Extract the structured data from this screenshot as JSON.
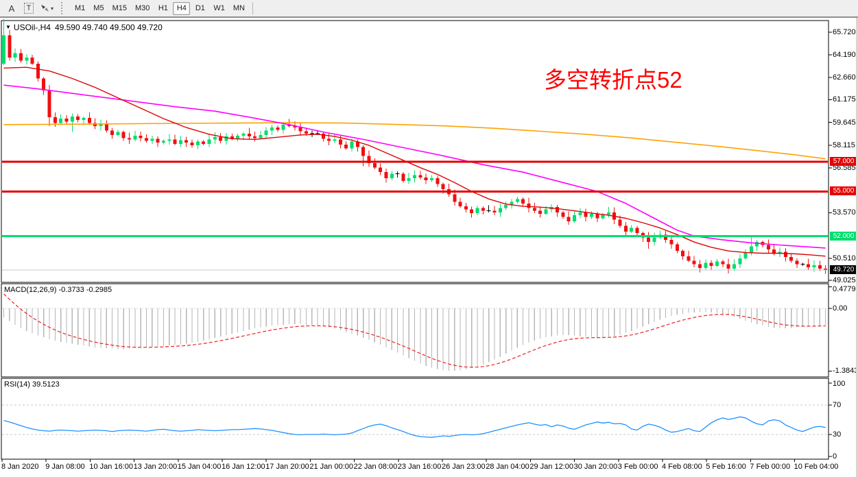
{
  "toolbar": {
    "text_tool_label": "A",
    "select_tool_label": "T",
    "caret_icon": "▾",
    "timeframes": [
      "M1",
      "M5",
      "M15",
      "M30",
      "H1",
      "H4",
      "D1",
      "W1",
      "MN"
    ],
    "active_timeframe": "H4"
  },
  "chart": {
    "dropdown_icon": "▼",
    "symbol": "USOil-,H4",
    "ohlc": "49.590 49.740 49.500 49.720",
    "annotation": {
      "text": "多空转折点52",
      "color": "#FF0000"
    },
    "colors": {
      "up": "#00DE6E",
      "down": "#F01010",
      "doji": "#000000",
      "ma_fast": "#DD0404",
      "ma_mid": "#FF00FF",
      "ma_slow": "#FFA200",
      "level_red": "#E60000",
      "level_green": "#00DE6E",
      "current_line": "#C8C8C8",
      "current_badge": "#000000",
      "histogram": "#B6B6B6",
      "signal": "#F02020",
      "rsi_line": "#1E90FF",
      "dashed_level": "#C8C8C8"
    },
    "y_axis": {
      "ticks": [
        {
          "label": "65.720",
          "value": 65.72
        },
        {
          "label": "64.190",
          "value": 64.19
        },
        {
          "label": "62.660",
          "value": 62.66
        },
        {
          "label": "61.175",
          "value": 61.175
        },
        {
          "label": "59.645",
          "value": 59.645
        },
        {
          "label": "58.115",
          "value": 58.115
        },
        {
          "label": "56.585",
          "value": 56.585
        },
        {
          "label": "53.570",
          "value": 53.57
        },
        {
          "label": "50.510",
          "value": 50.51
        },
        {
          "label": "49.025",
          "value": 49.025
        }
      ]
    },
    "levels": [
      {
        "label": "57.000",
        "value": 57.0,
        "style": "red"
      },
      {
        "label": "55.000",
        "value": 55.0,
        "style": "red"
      },
      {
        "label": "52.000",
        "value": 52.0,
        "style": "green"
      },
      {
        "label": "49.720",
        "value": 49.72,
        "style": "current"
      }
    ],
    "candles": {
      "first_open": 63.6,
      "closes": [
        65.5,
        64.0,
        64.3,
        63.8,
        64.0,
        63.6,
        62.6,
        61.8,
        60.0,
        59.6,
        59.9,
        59.7,
        60.05,
        59.8,
        59.95,
        59.6,
        59.4,
        59.55,
        59.1,
        58.8,
        59.0,
        58.6,
        58.5,
        58.75,
        58.6,
        58.4,
        58.55,
        58.3,
        58.4,
        58.5,
        58.2,
        58.45,
        58.3,
        58.1,
        58.35,
        58.2,
        58.5,
        58.65,
        58.4,
        58.7,
        58.55,
        58.75,
        58.9,
        58.7,
        58.6,
        58.8,
        59.1,
        59.3,
        59.15,
        59.5,
        59.4,
        59.3,
        59.05,
        58.9,
        58.9,
        58.9,
        58.55,
        58.4,
        58.5,
        58.15,
        57.9,
        58.35,
        58.0,
        57.4,
        56.9,
        56.6,
        56.3,
        55.9,
        56.2,
        56.2,
        55.7,
        55.9,
        56.1,
        55.95,
        55.75,
        55.9,
        55.5,
        55.15,
        54.8,
        54.3,
        54.0,
        53.8,
        53.55,
        53.9,
        53.7,
        53.7,
        53.6,
        53.9,
        54.1,
        54.3,
        54.5,
        54.2,
        53.9,
        53.7,
        53.5,
        53.8,
        53.95,
        53.6,
        53.3,
        53.0,
        53.4,
        53.6,
        53.3,
        53.5,
        53.2,
        53.45,
        53.6,
        53.1,
        52.7,
        52.3,
        52.55,
        52.2,
        51.9,
        51.6,
        51.9,
        52.1,
        51.75,
        51.45,
        51.0,
        50.65,
        50.35,
        50.1,
        49.85,
        50.2,
        50.0,
        50.3,
        50.1,
        49.8,
        50.1,
        50.5,
        50.9,
        51.3,
        51.6,
        51.4,
        51.1,
        50.8,
        50.95,
        50.6,
        50.35,
        50.1,
        50.1,
        49.9,
        50.05,
        49.8,
        49.72
      ],
      "high_overrides": {
        "0": 66.6,
        "131": 52.05
      },
      "low_overrides": {
        "8": 59.4,
        "12": 59.0,
        "63": 56.7,
        "113": 51.15
      }
    },
    "moving_averages": {
      "fast": [
        [
          0,
          63.3
        ],
        [
          4,
          63.35
        ],
        [
          8,
          63.1
        ],
        [
          12,
          62.6
        ],
        [
          16,
          62.0
        ],
        [
          20,
          61.3
        ],
        [
          24,
          60.6
        ],
        [
          28,
          59.9
        ],
        [
          32,
          59.3
        ],
        [
          36,
          58.85
        ],
        [
          40,
          58.55
        ],
        [
          44,
          58.5
        ],
        [
          48,
          58.65
        ],
        [
          52,
          58.8
        ],
        [
          55,
          58.85
        ],
        [
          58,
          58.7
        ],
        [
          61,
          58.45
        ],
        [
          64,
          58.1
        ],
        [
          67,
          57.6
        ],
        [
          70,
          57.1
        ],
        [
          73,
          56.6
        ],
        [
          76,
          56.15
        ],
        [
          79,
          55.6
        ],
        [
          82,
          55.0
        ],
        [
          85,
          54.5
        ],
        [
          88,
          54.15
        ],
        [
          91,
          54.0
        ],
        [
          94,
          53.95
        ],
        [
          97,
          53.85
        ],
        [
          100,
          53.7
        ],
        [
          103,
          53.55
        ],
        [
          106,
          53.4
        ],
        [
          109,
          53.2
        ],
        [
          112,
          52.9
        ],
        [
          115,
          52.55
        ],
        [
          118,
          52.1
        ],
        [
          121,
          51.6
        ],
        [
          124,
          51.25
        ],
        [
          127,
          51.0
        ],
        [
          130,
          50.9
        ],
        [
          133,
          50.85
        ],
        [
          136,
          50.85
        ],
        [
          139,
          50.8
        ],
        [
          142,
          50.72
        ],
        [
          144,
          50.65
        ]
      ],
      "mid": [
        [
          0,
          62.15
        ],
        [
          6,
          61.9
        ],
        [
          12,
          61.6
        ],
        [
          18,
          61.3
        ],
        [
          24,
          61.0
        ],
        [
          30,
          60.7
        ],
        [
          37,
          60.4
        ],
        [
          43,
          60.0
        ],
        [
          50,
          59.5
        ],
        [
          56,
          59.0
        ],
        [
          63,
          58.5
        ],
        [
          70,
          57.95
        ],
        [
          77,
          57.4
        ],
        [
          84,
          56.8
        ],
        [
          91,
          56.3
        ],
        [
          97,
          55.7
        ],
        [
          104,
          55.0
        ],
        [
          109,
          54.2
        ],
        [
          114,
          53.2
        ],
        [
          118,
          52.4
        ],
        [
          121,
          52.0
        ],
        [
          126,
          51.75
        ],
        [
          131,
          51.55
        ],
        [
          136,
          51.4
        ],
        [
          140,
          51.3
        ],
        [
          144,
          51.2
        ]
      ],
      "slow": [
        [
          0,
          59.5
        ],
        [
          10,
          59.52
        ],
        [
          20,
          59.55
        ],
        [
          30,
          59.58
        ],
        [
          40,
          59.6
        ],
        [
          50,
          59.62
        ],
        [
          60,
          59.6
        ],
        [
          70,
          59.5
        ],
        [
          78,
          59.4
        ],
        [
          86,
          59.25
        ],
        [
          94,
          59.05
        ],
        [
          102,
          58.85
        ],
        [
          110,
          58.6
        ],
        [
          118,
          58.3
        ],
        [
          126,
          58.0
        ],
        [
          132,
          57.75
        ],
        [
          138,
          57.5
        ],
        [
          144,
          57.2
        ]
      ]
    }
  },
  "macd": {
    "name": "MACD(12,26,9)",
    "values": "-0.3733 -0.2985",
    "y_ticks": [
      {
        "label": "0.4779",
        "value": 0.4779
      },
      {
        "label": "0.00",
        "value": 0
      },
      {
        "label": "-1.3843",
        "value": -1.3843
      }
    ],
    "signal_seed": 0.45,
    "histogram": [
      -0.2,
      -0.28,
      -0.36,
      -0.44,
      -0.5,
      -0.55,
      -0.6,
      -0.64,
      -0.68,
      -0.71,
      -0.74,
      -0.76,
      -0.78,
      -0.8,
      -0.82,
      -0.84,
      -0.86,
      -0.87,
      -0.88,
      -0.89,
      -0.9,
      -0.9,
      -0.89,
      -0.88,
      -0.87,
      -0.86,
      -0.85,
      -0.84,
      -0.83,
      -0.82,
      -0.81,
      -0.8,
      -0.78,
      -0.76,
      -0.74,
      -0.71,
      -0.68,
      -0.65,
      -0.62,
      -0.59,
      -0.56,
      -0.53,
      -0.5,
      -0.47,
      -0.44,
      -0.42,
      -0.4,
      -0.38,
      -0.37,
      -0.36,
      -0.35,
      -0.35,
      -0.35,
      -0.36,
      -0.37,
      -0.39,
      -0.4,
      -0.42,
      -0.45,
      -0.48,
      -0.52,
      -0.56,
      -0.6,
      -0.65,
      -0.7,
      -0.75,
      -0.8,
      -0.86,
      -0.92,
      -0.98,
      -1.04,
      -1.1,
      -1.16,
      -1.22,
      -1.27,
      -1.31,
      -1.34,
      -1.36,
      -1.38,
      -1.38,
      -1.37,
      -1.35,
      -1.32,
      -1.28,
      -1.24,
      -1.19,
      -1.13,
      -1.07,
      -1.0,
      -0.93,
      -0.87,
      -0.81,
      -0.76,
      -0.71,
      -0.67,
      -0.64,
      -0.62,
      -0.6,
      -0.59,
      -0.59,
      -0.6,
      -0.61,
      -0.62,
      -0.63,
      -0.64,
      -0.64,
      -0.63,
      -0.61,
      -0.58,
      -0.54,
      -0.5,
      -0.45,
      -0.4,
      -0.35,
      -0.3,
      -0.25,
      -0.21,
      -0.17,
      -0.14,
      -0.12,
      -0.1,
      -0.09,
      -0.08,
      -0.08,
      -0.09,
      -0.1,
      -0.12,
      -0.15,
      -0.19,
      -0.23,
      -0.27,
      -0.31,
      -0.35,
      -0.38,
      -0.41,
      -0.43,
      -0.44,
      -0.44,
      -0.43,
      -0.42,
      -0.41,
      -0.4,
      -0.39,
      -0.38,
      -0.3733
    ]
  },
  "rsi": {
    "name": "RSI(14)",
    "value": "39.5123",
    "y_ticks": [
      {
        "label": "100",
        "value": 100
      },
      {
        "label": "70",
        "value": 70
      },
      {
        "label": "30",
        "value": 30
      },
      {
        "label": "0",
        "value": 0
      }
    ],
    "levels": [
      70,
      30
    ],
    "values": [
      49,
      47,
      44.5,
      42,
      39.5,
      37.5,
      36,
      35,
      34.5,
      35.5,
      36,
      35.5,
      35,
      34.5,
      35,
      35.5,
      36,
      35.5,
      35,
      34,
      35,
      35.5,
      36,
      35.5,
      35,
      34.5,
      35.5,
      36.5,
      37,
      36,
      35,
      34.5,
      35,
      35.5,
      36.5,
      36,
      35.5,
      35,
      35.5,
      36,
      36.5,
      36.5,
      37,
      37.5,
      38,
      37.5,
      36.5,
      35.5,
      34,
      32.5,
      31,
      30,
      29.5,
      30,
      30,
      30,
      30.5,
      30,
      29.5,
      30,
      30.5,
      32,
      35,
      38,
      41,
      43,
      44,
      42,
      39,
      36.5,
      34,
      31,
      28.5,
      27,
      26.5,
      26,
      27,
      28,
      27.5,
      28.5,
      29.5,
      30,
      29.5,
      30,
      31,
      33,
      35,
      37,
      39,
      41,
      43,
      44.5,
      46,
      44,
      42.5,
      43.5,
      40.5,
      43,
      41.5,
      38.5,
      37,
      40,
      43,
      45,
      47,
      45.5,
      46.5,
      44.5,
      45,
      43,
      37.5,
      36,
      41,
      44,
      42.5,
      40,
      36,
      33,
      34,
      36,
      38,
      35,
      34,
      40,
      46,
      50,
      52.5,
      50.5,
      52,
      54,
      52.5,
      48,
      44.5,
      43,
      48.5,
      50,
      48.5,
      43,
      39.5,
      36,
      34,
      37,
      40,
      41,
      39.5
    ]
  },
  "x_axis": {
    "labels": [
      "8 Jan 2020",
      "9 Jan 08:00",
      "10 Jan 16:00",
      "13 Jan 20:00",
      "15 Jan 04:00",
      "16 Jan 12:00",
      "17 Jan 20:00",
      "21 Jan 00:00",
      "22 Jan 08:00",
      "23 Jan 16:00",
      "26 Jan 23:00",
      "28 Jan 04:00",
      "29 Jan 12:00",
      "30 Jan 20:00",
      "3 Feb 00:00",
      "4 Feb 08:00",
      "5 Feb 16:00",
      "7 Feb 00:00",
      "10 Feb 04:00"
    ]
  }
}
